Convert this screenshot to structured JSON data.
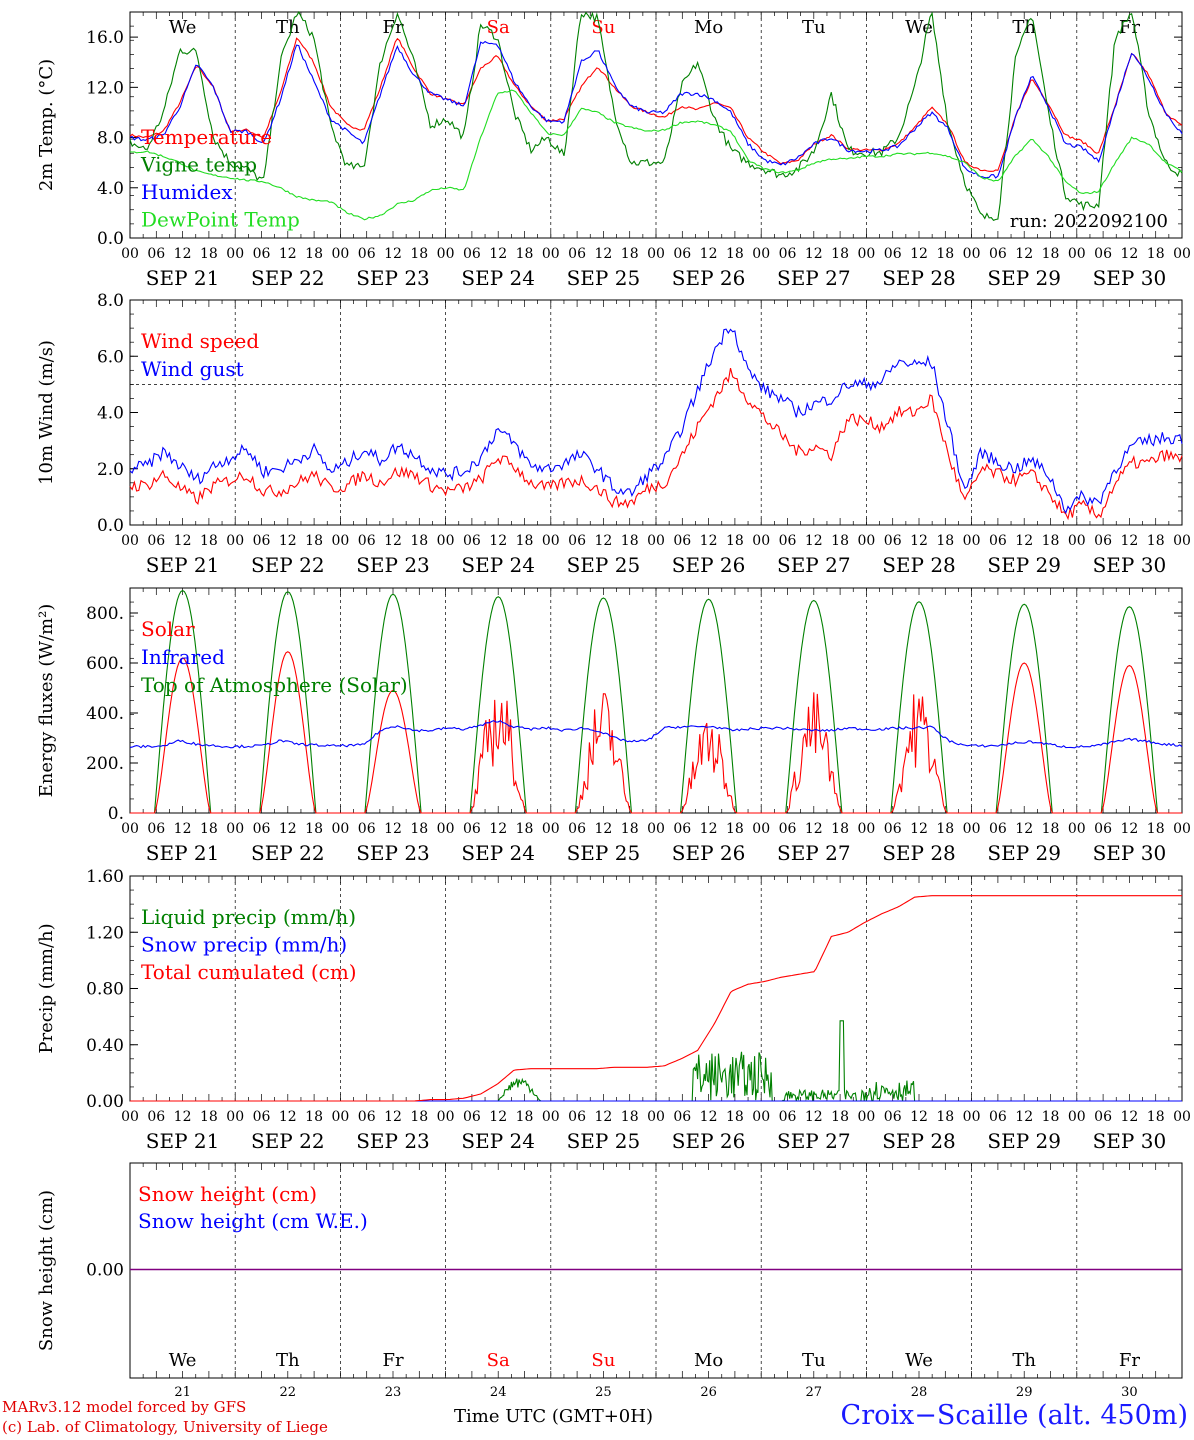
{
  "colors": {
    "red": "#ff0000",
    "green": "#008000",
    "blue": "#0000ff",
    "lightgreen": "#22dd22",
    "darkgreen": "#207020",
    "purple": "#800080"
  },
  "footer": {
    "credit_line1": "MARv3.12 model forced by GFS",
    "credit_line2": "(c) Lab. of Climatology, University of Liege",
    "x_axis_label": "Time UTC (GMT+0H)",
    "station": "Croix−Scaille (alt. 450m)"
  },
  "chart_data": [
    {
      "type": "line",
      "ylabel": "2m Temp. (°C)",
      "ylim": [
        0,
        18
      ],
      "yticks": [
        "0.0",
        "4.0",
        "8.0",
        "12.0",
        "16.0"
      ],
      "day_names": [
        "We",
        "Th",
        "Fr",
        "Sa",
        "Su",
        "Mo",
        "Tu",
        "We",
        "Th",
        "Fr"
      ],
      "hour_ticks": [
        "00",
        "06",
        "12",
        "18"
      ],
      "date_labels": [
        "SEP 21",
        "SEP 22",
        "SEP 23",
        "SEP 24",
        "SEP 25",
        "SEP 26",
        "SEP 27",
        "SEP 28",
        "SEP 29",
        "SEP 30"
      ],
      "annotation": "run: 2022092100",
      "series": [
        {
          "name": "Temperature",
          "color": "red",
          "values": [
            8.2,
            8.0,
            8.5,
            10.8,
            13.8,
            12.0,
            8.5,
            8.6,
            8.0,
            11.5,
            16.0,
            14.0,
            10.5,
            9.0,
            8.6,
            12.0,
            16.0,
            13.5,
            11.5,
            11.0,
            10.6,
            13.5,
            14.5,
            12.2,
            10.5,
            9.3,
            9.5,
            12.0,
            13.7,
            12.0,
            10.5,
            10.0,
            9.6,
            10.5,
            10.2,
            10.8,
            10.3,
            8.0,
            6.8,
            5.9,
            6.2,
            7.5,
            8.2,
            7.1,
            7.0,
            7.0,
            7.5,
            8.8,
            10.4,
            9.0,
            6.0,
            5.4,
            5.4,
            9.5,
            12.7,
            10.7,
            8.2,
            7.7,
            6.7,
            10.6,
            14.7,
            13.0,
            10.0,
            8.9
          ]
        },
        {
          "name": "Vigne temp",
          "color": "green",
          "values": [
            7.6,
            7.0,
            10.0,
            15.0,
            14.8,
            8.0,
            6.0,
            5.5,
            4.5,
            14.0,
            18.0,
            16.0,
            9.0,
            5.7,
            5.6,
            14.0,
            18.0,
            14.0,
            9.0,
            9.5,
            8.0,
            17.0,
            16.0,
            10.0,
            7.0,
            8.0,
            6.5,
            18.0,
            17.5,
            10.0,
            6.0,
            6.0,
            6.0,
            12.0,
            14.0,
            9.5,
            7.0,
            6.0,
            5.5,
            5.0,
            5.5,
            7.0,
            11.5,
            7.0,
            6.8,
            6.8,
            8.0,
            12.0,
            18.0,
            9.0,
            4.5,
            1.6,
            1.8,
            14.0,
            18.0,
            10.0,
            3.5,
            2.6,
            2.6,
            16.0,
            18.0,
            10.0,
            6.0,
            5.0
          ]
        },
        {
          "name": "Humidex",
          "color": "blue",
          "values": [
            8.0,
            7.8,
            8.2,
            10.5,
            13.9,
            12.0,
            8.5,
            8.5,
            7.5,
            11.0,
            15.5,
            12.5,
            9.5,
            8.5,
            7.5,
            11.5,
            15.3,
            13.0,
            11.5,
            11.0,
            10.5,
            15.5,
            15.5,
            12.5,
            10.5,
            9.3,
            9.3,
            14.0,
            15.0,
            12.2,
            10.5,
            10.0,
            10.0,
            11.5,
            11.5,
            11.0,
            10.0,
            7.5,
            6.2,
            5.8,
            6.4,
            7.5,
            8.0,
            7.0,
            6.9,
            7.0,
            7.3,
            8.7,
            10.0,
            8.7,
            5.5,
            4.9,
            4.9,
            9.5,
            12.9,
            10.5,
            7.5,
            7.2,
            6.1,
            10.5,
            14.9,
            12.7,
            10.0,
            8.3
          ]
        },
        {
          "name": "DewPoint Temp",
          "color": "lightgreen",
          "values": [
            6.8,
            6.9,
            6.5,
            6.0,
            5.3,
            5.0,
            4.8,
            4.6,
            4.5,
            4.0,
            3.3,
            3.0,
            2.9,
            2.0,
            1.5,
            1.8,
            2.7,
            3.0,
            3.8,
            4.0,
            3.8,
            8.0,
            11.5,
            11.8,
            10.0,
            8.3,
            8.2,
            10.3,
            10.0,
            9.2,
            8.8,
            8.5,
            8.6,
            9.2,
            9.3,
            9.0,
            8.5,
            6.2,
            5.5,
            5.2,
            5.4,
            6.0,
            6.3,
            6.3,
            6.5,
            6.5,
            6.7,
            6.7,
            6.8,
            6.5,
            6.0,
            4.8,
            4.5,
            6.5,
            7.9,
            6.5,
            4.5,
            3.5,
            3.7,
            6.0,
            8.0,
            7.5,
            6.0,
            5.3
          ]
        }
      ]
    },
    {
      "type": "line",
      "ylabel": "10m Wind (m/s)",
      "ylim": [
        0,
        8
      ],
      "yticks": [
        "0.0",
        "2.0",
        "4.0",
        "6.0",
        "8.0"
      ],
      "reference_line": 5,
      "date_labels": [
        "SEP 21",
        "SEP 22",
        "SEP 23",
        "SEP 24",
        "SEP 25",
        "SEP 26",
        "SEP 27",
        "SEP 28",
        "SEP 29",
        "SEP 30"
      ],
      "series": [
        {
          "name": "Wind speed",
          "color": "red",
          "values": [
            1.4,
            1.4,
            1.8,
            1.3,
            0.9,
            1.4,
            1.6,
            1.8,
            1.2,
            1.2,
            1.5,
            1.8,
            1.3,
            1.4,
            1.8,
            1.5,
            1.9,
            1.8,
            1.4,
            1.2,
            1.3,
            1.6,
            2.4,
            2.1,
            1.5,
            1.3,
            1.5,
            1.6,
            1.3,
            0.8,
            0.8,
            1.3,
            1.5,
            2.4,
            3.5,
            4.5,
            5.4,
            4.5,
            3.8,
            3.2,
            2.6,
            2.8,
            2.5,
            3.8,
            3.7,
            3.5,
            4.0,
            4.0,
            4.5,
            2.5,
            0.8,
            2.0,
            1.8,
            1.6,
            1.8,
            1.2,
            0.3,
            0.7,
            0.3,
            1.5,
            2.2,
            2.2,
            2.5,
            2.3
          ]
        },
        {
          "name": "Wind gust",
          "color": "blue",
          "values": [
            2.0,
            2.1,
            2.6,
            2.1,
            1.6,
            2.1,
            2.4,
            2.7,
            1.9,
            2.0,
            2.3,
            2.7,
            1.9,
            2.2,
            2.7,
            2.3,
            2.8,
            2.5,
            2.0,
            1.8,
            1.9,
            2.4,
            3.4,
            2.9,
            2.1,
            2.0,
            2.2,
            2.5,
            2.0,
            1.3,
            1.1,
            1.8,
            2.3,
            3.4,
            4.8,
            6.2,
            7.2,
            5.5,
            4.8,
            4.5,
            4.0,
            4.3,
            4.5,
            5.0,
            5.0,
            5.1,
            5.8,
            5.7,
            5.8,
            3.5,
            1.2,
            2.6,
            2.2,
            2.0,
            2.3,
            1.8,
            0.6,
            1.0,
            0.8,
            2.0,
            2.8,
            3.0,
            3.1,
            3.1
          ]
        }
      ]
    },
    {
      "type": "line",
      "ylabel": "Energy fluxes (W/m²)",
      "ylim": [
        0,
        900
      ],
      "yticks": [
        "0.",
        "200.",
        "400.",
        "600.",
        "800."
      ],
      "date_labels": [
        "SEP 21",
        "SEP 22",
        "SEP 23",
        "SEP 24",
        "SEP 25",
        "SEP 26",
        "SEP 27",
        "SEP 28",
        "SEP 29",
        "SEP 30"
      ],
      "series": [
        {
          "name": "Solar",
          "color": "red",
          "daily_max": [
            620,
            645,
            490,
            550,
            510,
            410,
            500,
            520,
            600,
            590
          ]
        },
        {
          "name": "Infrared",
          "color": "blue",
          "values": [
            265,
            266,
            268,
            290,
            275,
            270,
            265,
            267,
            270,
            290,
            276,
            272,
            268,
            270,
            272,
            330,
            350,
            330,
            330,
            340,
            335,
            350,
            370,
            345,
            335,
            340,
            330,
            340,
            330,
            300,
            285,
            290,
            340,
            345,
            345,
            345,
            330,
            335,
            340,
            340,
            335,
            330,
            330,
            340,
            335,
            335,
            340,
            340,
            345,
            290,
            270,
            268,
            270,
            280,
            285,
            275,
            265,
            265,
            270,
            285,
            295,
            285,
            275,
            270
          ]
        },
        {
          "name": "Top of Atmosphere (Solar)",
          "color": "green",
          "daily_max": [
            890,
            885,
            875,
            865,
            860,
            855,
            850,
            845,
            835,
            825
          ]
        }
      ]
    },
    {
      "type": "line",
      "ylabel": "Precip (mm/h)",
      "ylim": [
        0,
        1.6
      ],
      "yticks": [
        "0.00",
        "0.40",
        "0.80",
        "1.20",
        "1.60"
      ],
      "date_labels": [
        "SEP 21",
        "SEP 22",
        "SEP 23",
        "SEP 24",
        "SEP 25",
        "SEP 26",
        "SEP 27",
        "SEP 28",
        "SEP 29",
        "SEP 30"
      ],
      "series": [
        {
          "name": "Liquid precip (mm/h)",
          "color": "green"
        },
        {
          "name": "Snow precip (mm/h)",
          "color": "blue"
        },
        {
          "name": "Total cumulated (cm)",
          "color": "red",
          "values": [
            0,
            0,
            0,
            0,
            0,
            0,
            0,
            0,
            0,
            0,
            0,
            0,
            0,
            0,
            0,
            0,
            0,
            0,
            0.01,
            0.01,
            0.02,
            0.05,
            0.12,
            0.22,
            0.23,
            0.23,
            0.23,
            0.23,
            0.23,
            0.24,
            0.24,
            0.24,
            0.25,
            0.3,
            0.36,
            0.55,
            0.78,
            0.83,
            0.85,
            0.88,
            0.9,
            0.92,
            1.17,
            1.2,
            1.27,
            1.33,
            1.38,
            1.45,
            1.46,
            1.46,
            1.46,
            1.46,
            1.46,
            1.46,
            1.46,
            1.46,
            1.46,
            1.46,
            1.46,
            1.46,
            1.46,
            1.46,
            1.46,
            1.46
          ]
        }
      ]
    },
    {
      "type": "line",
      "ylabel": "Snow height (cm)",
      "yticks": [
        "0.00"
      ],
      "day_names": [
        "We",
        "Th",
        "Fr",
        "Sa",
        "Su",
        "Mo",
        "Tu",
        "We",
        "Th",
        "Fr"
      ],
      "day_numbers": [
        "21",
        "22",
        "23",
        "24",
        "25",
        "26",
        "27",
        "28",
        "29",
        "30"
      ],
      "series": [
        {
          "name": "Snow height (cm)",
          "color": "red",
          "values": [
            0
          ]
        },
        {
          "name": "Snow height (cm W.E.)",
          "color": "blue",
          "values": [
            0
          ]
        }
      ]
    }
  ]
}
